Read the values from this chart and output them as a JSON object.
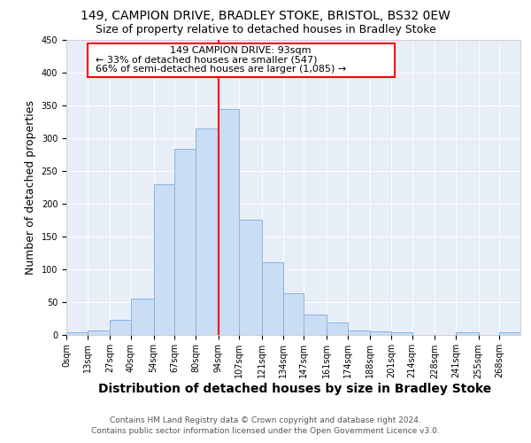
{
  "title_line1": "149, CAMPION DRIVE, BRADLEY STOKE, BRISTOL, BS32 0EW",
  "title_line2": "Size of property relative to detached houses in Bradley Stoke",
  "xlabel": "Distribution of detached houses by size in Bradley Stoke",
  "ylabel": "Number of detached properties",
  "footer": "Contains HM Land Registry data © Crown copyright and database right 2024.\nContains public sector information licensed under the Open Government Licence v3.0.",
  "bin_labels": [
    "0sqm",
    "13sqm",
    "27sqm",
    "40sqm",
    "54sqm",
    "67sqm",
    "80sqm",
    "94sqm",
    "107sqm",
    "121sqm",
    "134sqm",
    "147sqm",
    "161sqm",
    "174sqm",
    "188sqm",
    "201sqm",
    "214sqm",
    "228sqm",
    "241sqm",
    "255sqm",
    "268sqm"
  ],
  "bin_edges": [
    0,
    13,
    27,
    40,
    54,
    67,
    80,
    94,
    107,
    121,
    134,
    147,
    161,
    174,
    188,
    201,
    214,
    228,
    241,
    255,
    268,
    281
  ],
  "bar_heights": [
    3,
    6,
    22,
    55,
    230,
    283,
    315,
    345,
    175,
    110,
    63,
    30,
    18,
    6,
    5,
    3,
    0,
    0,
    3,
    0,
    3
  ],
  "bar_color": "#c9ddf5",
  "bar_edge_color": "#8ab4e0",
  "vline_x": 94,
  "vline_color": "red",
  "annotation_title": "149 CAMPION DRIVE: 93sqm",
  "annotation_line1": "← 33% of detached houses are smaller (547)",
  "annotation_line2": "66% of semi-detached houses are larger (1,085) →",
  "ylim": [
    0,
    450
  ],
  "yticks": [
    0,
    50,
    100,
    150,
    200,
    250,
    300,
    350,
    400,
    450
  ],
  "background_color": "#e8eef8",
  "grid_color": "#ffffff",
  "title_fontsize": 10,
  "subtitle_fontsize": 9,
  "ylabel_fontsize": 9,
  "xlabel_fontsize": 10,
  "tick_fontsize": 7,
  "footer_fontsize": 6.5,
  "ann_fontsize": 8
}
